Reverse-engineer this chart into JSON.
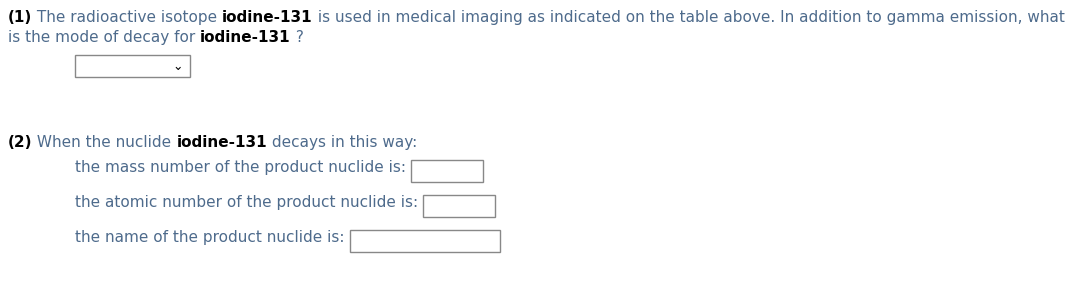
{
  "bg_color": "#ffffff",
  "black": "#000000",
  "blue": "#4e6b8c",
  "red": "#c0392b",
  "gray": "#888888",
  "fs": 11,
  "fig_w": 10.69,
  "fig_h": 2.91,
  "dpi": 100,
  "q1_label": "(1)",
  "q1_p1": " The radioactive isotope ",
  "q1_bold": "iodine-131",
  "q1_p2": " is used in medical imaging as indicated on the table above. In addition to gamma emission, what",
  "q1_line2_p1": "is the mode of decay for ",
  "q1_line2_bold": "iodine-131",
  "q1_line2_p2": " ?",
  "q2_label": "(2)",
  "q2_p1": " When the nuclide ",
  "q2_bold": "iodine-131",
  "q2_p2": " decays in this way:",
  "sub1": "the mass number of the product nuclide is:",
  "sub2": "the atomic number of the product nuclide is:",
  "sub3": "the name of the product nuclide is:"
}
